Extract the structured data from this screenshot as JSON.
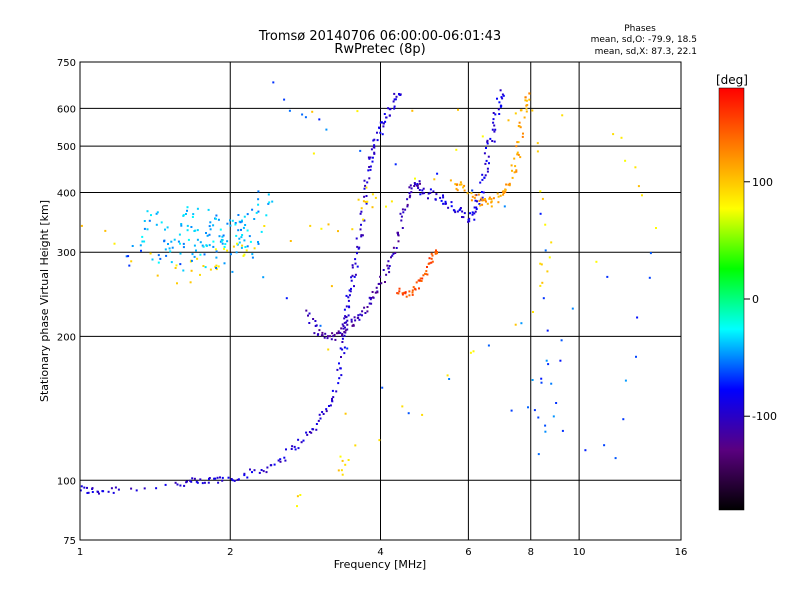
{
  "chart_data": {
    "type": "scatter",
    "title": "Tromsø 20140706 06:00:00-06:01:43",
    "subtitle": "RwPretec (8p)",
    "xlabel": "Frequency [MHz]",
    "ylabel": "Stationary phase Virtual Height [km]",
    "x_scale": "log",
    "y_scale": "log",
    "xlim": [
      1,
      16
    ],
    "ylim": [
      75,
      750
    ],
    "x_ticks": [
      1,
      2,
      4,
      6,
      8,
      10,
      16
    ],
    "y_ticks": [
      75,
      100,
      200,
      300,
      400,
      500,
      600,
      750
    ],
    "grid": true,
    "stats": {
      "header": "Phases",
      "line_o": "mean, sd,O: -79.9, 18.5",
      "line_x": "mean, sd,X:  87.3, 22.1"
    },
    "colorbar": {
      "label": "[deg]",
      "range": [
        -180,
        180
      ],
      "ticks": [
        {
          "value": 100,
          "label": "100"
        },
        {
          "value": 0,
          "label": "0"
        },
        {
          "value": -100,
          "label": "-100"
        }
      ],
      "colormap": [
        "#000000",
        "#5a0080",
        "#0000ff",
        "#00ffff",
        "#00ff00",
        "#ffff00",
        "#ff8000",
        "#ff0000"
      ]
    },
    "series": [
      {
        "phase": -95,
        "spread": 0.04,
        "points": [
          [
            1.0,
            96
          ],
          [
            1.05,
            95
          ],
          [
            1.1,
            95
          ],
          [
            1.2,
            96
          ],
          [
            1.55,
            98
          ],
          [
            1.65,
            99
          ],
          [
            1.75,
            99
          ],
          [
            1.85,
            100
          ],
          [
            1.95,
            101
          ],
          [
            2.1,
            102
          ],
          [
            2.25,
            104
          ],
          [
            2.4,
            107
          ],
          [
            2.55,
            112
          ],
          [
            2.7,
            118
          ],
          [
            2.85,
            124
          ],
          [
            3.0,
            131
          ],
          [
            3.1,
            140
          ],
          [
            3.2,
            148
          ],
          [
            3.3,
            165
          ],
          [
            3.35,
            185
          ],
          [
            3.38,
            200
          ],
          [
            3.4,
            215
          ],
          [
            3.42,
            225
          ],
          [
            3.45,
            240
          ],
          [
            3.5,
            255
          ],
          [
            3.55,
            275
          ],
          [
            3.6,
            300
          ],
          [
            3.65,
            330
          ],
          [
            3.7,
            370
          ],
          [
            3.75,
            420
          ],
          [
            3.8,
            460
          ],
          [
            3.85,
            480
          ],
          [
            3.9,
            510
          ],
          [
            4.0,
            540
          ],
          [
            4.05,
            560
          ],
          [
            4.15,
            590
          ],
          [
            4.25,
            620
          ],
          [
            4.35,
            645
          ]
        ]
      },
      {
        "phase": -110,
        "spread": 0.04,
        "points": [
          [
            2.85,
            225
          ],
          [
            2.95,
            210
          ],
          [
            3.05,
            202
          ],
          [
            3.15,
            200
          ],
          [
            3.25,
            200
          ],
          [
            3.35,
            205
          ],
          [
            3.45,
            210
          ],
          [
            3.55,
            215
          ],
          [
            3.65,
            220
          ],
          [
            3.75,
            230
          ],
          [
            3.85,
            240
          ],
          [
            3.95,
            250
          ],
          [
            4.05,
            265
          ],
          [
            4.15,
            280
          ],
          [
            4.25,
            300
          ],
          [
            4.35,
            330
          ],
          [
            4.45,
            365
          ],
          [
            4.55,
            390
          ],
          [
            4.65,
            410
          ],
          [
            4.75,
            420
          ]
        ]
      },
      {
        "phase": -90,
        "spread": 0.05,
        "points": [
          [
            4.7,
            410
          ],
          [
            4.9,
            400
          ],
          [
            5.1,
            395
          ],
          [
            5.3,
            385
          ],
          [
            5.5,
            375
          ],
          [
            5.7,
            365
          ],
          [
            5.9,
            355
          ],
          [
            6.1,
            355
          ],
          [
            6.2,
            370
          ],
          [
            6.3,
            390
          ],
          [
            6.4,
            420
          ],
          [
            6.5,
            450
          ],
          [
            6.6,
            490
          ],
          [
            6.7,
            530
          ],
          [
            6.8,
            570
          ],
          [
            6.9,
            610
          ],
          [
            7.0,
            640
          ]
        ]
      },
      {
        "phase": 115,
        "spread": 0.05,
        "points": [
          [
            5.6,
            420
          ],
          [
            5.8,
            410
          ],
          [
            6.0,
            400
          ],
          [
            6.2,
            390
          ],
          [
            6.4,
            380
          ],
          [
            6.6,
            380
          ],
          [
            6.8,
            385
          ],
          [
            7.0,
            395
          ],
          [
            7.2,
            410
          ],
          [
            7.4,
            440
          ],
          [
            7.5,
            470
          ],
          [
            7.6,
            520
          ],
          [
            7.7,
            570
          ],
          [
            7.8,
            610
          ],
          [
            7.9,
            640
          ]
        ]
      },
      {
        "phase": 150,
        "spread": 0.03,
        "points": [
          [
            4.3,
            250
          ],
          [
            4.45,
            245
          ],
          [
            4.6,
            245
          ],
          [
            4.75,
            255
          ],
          [
            4.85,
            265
          ],
          [
            4.95,
            275
          ],
          [
            5.05,
            290
          ],
          [
            5.15,
            300
          ]
        ]
      },
      {
        "phase": -40,
        "spread": 0.09,
        "points": [
          [
            1.3,
            320
          ],
          [
            1.35,
            340
          ],
          [
            1.45,
            360
          ],
          [
            1.5,
            320
          ],
          [
            1.55,
            300
          ],
          [
            1.6,
            340
          ],
          [
            1.65,
            370
          ],
          [
            1.7,
            310
          ],
          [
            1.75,
            290
          ],
          [
            1.8,
            330
          ],
          [
            1.85,
            355
          ],
          [
            1.9,
            300
          ],
          [
            1.95,
            320
          ],
          [
            2.0,
            345
          ],
          [
            2.05,
            310
          ],
          [
            2.1,
            365
          ],
          [
            2.15,
            330
          ],
          [
            2.2,
            300
          ],
          [
            2.3,
            350
          ],
          [
            2.4,
            385
          ],
          [
            1.4,
            295
          ],
          [
            1.6,
            285
          ],
          [
            1.75,
            370
          ],
          [
            2.05,
            280
          ],
          [
            2.25,
            385
          ]
        ]
      },
      {
        "phase": 90,
        "spread": 0.1,
        "points": [
          [
            1.0,
            360
          ],
          [
            1.02,
            330
          ],
          [
            1.55,
            270
          ],
          [
            1.7,
            275
          ],
          [
            1.85,
            285
          ],
          [
            2.0,
            300
          ],
          [
            2.2,
            320
          ],
          [
            3.6,
            350
          ],
          [
            3.7,
            395
          ],
          [
            4.1,
            380
          ],
          [
            8.3,
            580
          ],
          [
            8.6,
            300
          ],
          [
            8.5,
            250
          ],
          [
            3.3,
            110
          ],
          [
            3.4,
            105
          ],
          [
            2.9,
            620
          ],
          [
            11.5,
            540
          ],
          [
            14.0,
            350
          ],
          [
            2.75,
            90
          ]
        ]
      },
      {
        "phase": -60,
        "spread": 0.1,
        "points": [
          [
            2.5,
            670
          ],
          [
            3.05,
            525
          ],
          [
            8.4,
            355
          ],
          [
            8.5,
            110
          ],
          [
            9.0,
            190
          ],
          [
            7.5,
            140
          ],
          [
            12.0,
            112
          ],
          [
            13.8,
            300
          ],
          [
            4.5,
            145
          ],
          [
            2.0,
            290
          ],
          [
            1.25,
            295
          ]
        ]
      }
    ]
  }
}
